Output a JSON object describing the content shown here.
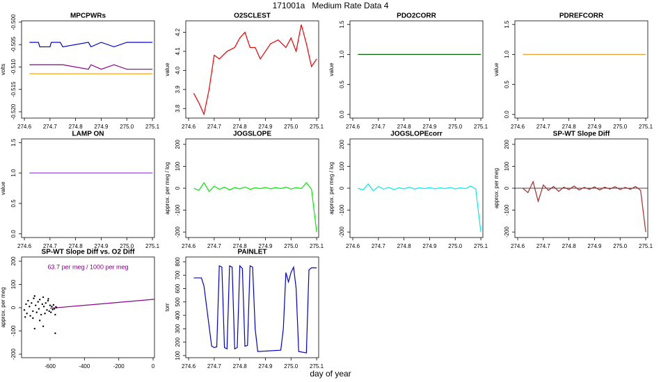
{
  "title": "171001a   Medium Rate Data 4",
  "xlabel": "day of year",
  "chart_data": [
    {
      "type": "line",
      "title": "MPCPWRs",
      "ylabel": "volts",
      "x": [
        274.62,
        274.655,
        274.66,
        274.7,
        274.705,
        274.74,
        274.75,
        274.85,
        274.86,
        274.9,
        274.95,
        275.0,
        275.1
      ],
      "series": [
        {
          "color": "#0000cd",
          "values": [
            -0.5045,
            -0.5045,
            -0.5055,
            -0.5055,
            -0.5045,
            -0.5045,
            -0.5055,
            -0.5045,
            -0.5055,
            -0.5045,
            -0.5055,
            -0.5045,
            -0.5045
          ]
        },
        {
          "color": "#8b008b",
          "values": [
            -0.5095,
            -0.5095,
            -0.5095,
            -0.5095,
            -0.5095,
            -0.5095,
            -0.5095,
            -0.5105,
            -0.5095,
            -0.5105,
            -0.5095,
            -0.5105,
            -0.5105
          ]
        },
        {
          "color": "#ffa500",
          "values": [
            -0.5115,
            -0.5115,
            -0.5115,
            -0.5115,
            -0.5115,
            -0.5115,
            -0.5115,
            -0.5115,
            -0.5115,
            -0.5115,
            -0.5115,
            -0.5115,
            -0.5115
          ]
        }
      ],
      "xlim": [
        274.589,
        275.108
      ],
      "ylim": [
        -0.5214,
        -0.4997
      ],
      "xticks": [
        274.6,
        274.7,
        274.8,
        274.9,
        {
          "value": 275,
          "label": "275.0"
        },
        275.1
      ],
      "yticks": [
        {
          "value": -0.5,
          "label": "-0.500"
        },
        {
          "value": -0.505,
          "label": "-0.505"
        },
        {
          "value": -0.51,
          "label": "-0.510"
        },
        {
          "value": -0.515,
          "label": "-0.515"
        },
        {
          "value": -0.52,
          "label": "-0.520"
        }
      ]
    },
    {
      "type": "line",
      "title": "O2SCLEST",
      "ylabel": "value",
      "x": [
        274.62,
        274.64,
        274.66,
        274.68,
        274.7,
        274.72,
        274.75,
        274.78,
        274.8,
        274.82,
        274.84,
        274.86,
        274.88,
        274.9,
        274.92,
        274.95,
        274.98,
        275.0,
        275.02,
        275.04,
        275.06,
        275.08,
        275.09,
        275.1
      ],
      "series": [
        {
          "color": "#ee0000",
          "values": [
            3.88,
            3.83,
            3.77,
            3.9,
            4.08,
            4.06,
            4.1,
            4.12,
            4.17,
            4.2,
            4.12,
            4.12,
            4.06,
            4.1,
            4.14,
            4.16,
            4.12,
            4.17,
            4.1,
            4.24,
            4.14,
            4.02,
            4.04,
            4.06
          ]
        }
      ],
      "xlim": [
        274.589,
        275.108
      ],
      "ylim": [
        3.75,
        4.26
      ],
      "xticks": [
        274.6,
        274.7,
        274.8,
        274.9,
        {
          "value": 275,
          "label": "275.0"
        },
        275.1
      ],
      "yticks": [
        3.8,
        3.9,
        {
          "value": 4,
          "label": "4.0"
        },
        4.1,
        4.2
      ]
    },
    {
      "type": "line",
      "title": "PDO2CORR",
      "ylabel": "value",
      "x": [
        274.62,
        275.1
      ],
      "series": [
        {
          "color": "#006400",
          "values": [
            1,
            1
          ]
        }
      ],
      "xlim": [
        274.589,
        275.108
      ],
      "ylim": [
        -0.06,
        1.56
      ],
      "xticks": [
        274.6,
        274.7,
        274.8,
        274.9,
        {
          "value": 275,
          "label": "275.0"
        },
        275.1
      ],
      "yticks": [
        {
          "value": 0,
          "label": "0.0"
        },
        0.5,
        {
          "value": 1,
          "label": "1.0"
        },
        1.5
      ]
    },
    {
      "type": "line",
      "title": "PDREFCORR",
      "ylabel": "value",
      "x": [
        274.62,
        275.1
      ],
      "series": [
        {
          "color": "#f0a030",
          "values": [
            1,
            1
          ]
        }
      ],
      "xlim": [
        274.589,
        275.108
      ],
      "ylim": [
        -0.06,
        1.56
      ],
      "xticks": [
        274.6,
        274.7,
        274.8,
        274.9,
        {
          "value": 275,
          "label": "275.0"
        },
        275.1
      ],
      "yticks": [
        {
          "value": 0,
          "label": "0.0"
        },
        0.5,
        {
          "value": 1,
          "label": "1.0"
        },
        1.5
      ]
    },
    {
      "type": "line",
      "title": "LAMP ON",
      "ylabel": "value",
      "x": [
        274.62,
        275.1
      ],
      "series": [
        {
          "color": "#a020f0",
          "values": [
            1,
            1
          ]
        }
      ],
      "xlim": [
        274.589,
        275.108
      ],
      "ylim": [
        -0.06,
        1.56
      ],
      "xticks": [
        274.6,
        274.7,
        274.8,
        274.9,
        {
          "value": 275,
          "label": "275.0"
        },
        275.1
      ],
      "yticks": [
        {
          "value": 0,
          "label": "0.0"
        },
        0.5,
        {
          "value": 1,
          "label": "1.0"
        },
        1.5
      ]
    },
    {
      "type": "line",
      "title": "JOGSLOPE",
      "ylabel": "approx. per meg / log",
      "x": [
        274.62,
        274.64,
        274.66,
        274.68,
        274.7,
        274.72,
        274.74,
        274.76,
        274.78,
        274.8,
        274.82,
        274.84,
        274.86,
        274.88,
        274.9,
        274.92,
        274.94,
        274.96,
        274.98,
        275.0,
        275.02,
        275.04,
        275.06,
        275.08,
        275.1
      ],
      "series": [
        {
          "color": "#00ee00",
          "values": [
            0,
            -10,
            25,
            -15,
            10,
            -5,
            5,
            -8,
            3,
            -3,
            6,
            -5,
            2,
            -2,
            4,
            -3,
            3,
            -2,
            5,
            -4,
            3,
            -2,
            25,
            -5,
            -200
          ]
        }
      ],
      "xlim": [
        274.589,
        275.108
      ],
      "ylim": [
        -225,
        225
      ],
      "xticks": [
        274.6,
        274.7,
        274.8,
        274.9,
        {
          "value": 275,
          "label": "275.0"
        },
        275.1
      ],
      "yticks": [
        -200,
        -100,
        0,
        100,
        200
      ]
    },
    {
      "type": "line",
      "title": "JOGSLOPEcorr",
      "ylabel": "approx. per meg / log",
      "x": [
        274.62,
        274.64,
        274.66,
        274.68,
        274.7,
        274.72,
        274.74,
        274.76,
        274.78,
        274.8,
        274.82,
        274.84,
        274.86,
        274.88,
        274.9,
        274.92,
        274.94,
        274.96,
        274.98,
        275.0,
        275.02,
        275.04,
        275.06,
        275.08,
        275.1
      ],
      "series": [
        {
          "color": "#00eeee",
          "values": [
            0,
            -8,
            20,
            -12,
            8,
            -4,
            4,
            -6,
            2,
            -3,
            5,
            -4,
            2,
            -2,
            3,
            -3,
            2,
            -2,
            4,
            -3,
            2,
            -2,
            10,
            -4,
            -200
          ]
        }
      ],
      "xlim": [
        274.589,
        275.108
      ],
      "ylim": [
        -225,
        225
      ],
      "xticks": [
        274.6,
        274.7,
        274.8,
        274.9,
        {
          "value": 275,
          "label": "275.0"
        },
        275.1
      ],
      "yticks": [
        -200,
        -100,
        0,
        100,
        200
      ]
    },
    {
      "type": "line",
      "title": "SP-WT Slope Diff",
      "ylabel": "approx. per meg",
      "hline": 0,
      "x": [
        274.62,
        274.64,
        274.66,
        274.68,
        274.7,
        274.72,
        274.74,
        274.76,
        274.78,
        274.8,
        274.82,
        274.84,
        274.86,
        274.88,
        274.9,
        274.92,
        274.94,
        274.96,
        274.98,
        275.0,
        275.02,
        275.04,
        275.06,
        275.08,
        275.1
      ],
      "series": [
        {
          "color": "#a52a2a",
          "values": [
            0,
            -20,
            30,
            -60,
            15,
            -10,
            8,
            -15,
            5,
            -6,
            10,
            -8,
            4,
            -5,
            6,
            -8,
            5,
            -4,
            7,
            -6,
            4,
            -5,
            8,
            -10,
            -200
          ]
        }
      ],
      "xlim": [
        274.589,
        275.108
      ],
      "ylim": [
        -225,
        225
      ],
      "xticks": [
        274.6,
        274.7,
        274.8,
        274.9,
        {
          "value": 275,
          "label": "275.0"
        },
        275.1
      ],
      "yticks": [
        -200,
        -100,
        0,
        100,
        200
      ]
    },
    {
      "type": "scatter",
      "title": "SP-WT Slope Diff vs. O2 Diff",
      "ylabel": "approx. per meg",
      "annotation": "63.7 per meg / 1000 per meg",
      "annotation_color": "#8b008b",
      "series": [
        {
          "kind": "points",
          "color": "#000000",
          "x": [
            -750,
            -740,
            -735,
            -728,
            -720,
            -715,
            -708,
            -700,
            -695,
            -690,
            -684,
            -678,
            -670,
            -665,
            -660,
            -652,
            -645,
            -640,
            -636,
            -630,
            -625,
            -618,
            -612,
            -605,
            -600,
            -595,
            -590,
            -585,
            -580,
            -575,
            -570,
            -566,
            -562,
            -700,
            -690,
            -640,
            -570,
            -745,
            -660,
            -610
          ],
          "values": [
            -10,
            15,
            -25,
            30,
            5,
            -35,
            20,
            -15,
            40,
            -90,
            10,
            -20,
            25,
            -5,
            35,
            -30,
            15,
            -80,
            5,
            -25,
            20,
            -10,
            30,
            -15,
            10,
            -20,
            5,
            -8,
            12,
            -5,
            -110,
            3,
            0,
            -45,
            50,
            45,
            -30,
            -40,
            -55,
            38
          ]
        },
        {
          "kind": "line",
          "color": "#8b008b",
          "x": [
            -600,
            8
          ],
          "values": [
            -2.5,
            36.2
          ]
        }
      ],
      "xlim": [
        -766,
        8
      ],
      "ylim": [
        -215,
        218
      ],
      "xticks": [
        -600,
        -400,
        -200,
        0
      ],
      "yticks": [
        -200,
        -100,
        0,
        100,
        200
      ]
    },
    {
      "type": "line",
      "title": "PAINLET",
      "ylabel": "torr",
      "x": [
        274.62,
        274.65,
        274.66,
        274.69,
        274.7,
        274.71,
        274.72,
        274.73,
        274.74,
        274.75,
        274.76,
        274.77,
        274.78,
        274.79,
        274.8,
        274.81,
        274.82,
        274.83,
        274.84,
        274.85,
        274.86,
        274.87,
        274.96,
        274.97,
        274.98,
        274.99,
        275.0,
        275.01,
        275.02,
        275.03,
        275.06,
        275.07,
        275.08,
        275.1
      ],
      "series": [
        {
          "color": "#0000cd",
          "values": [
            680,
            680,
            620,
            170,
            160,
            165,
            770,
            760,
            160,
            150,
            770,
            760,
            150,
            160,
            770,
            750,
            170,
            175,
            770,
            760,
            300,
            130,
            140,
            300,
            720,
            650,
            720,
            760,
            600,
            130,
            120,
            740,
            755,
            755
          ]
        }
      ],
      "xlim": [
        274.589,
        275.108
      ],
      "ylim": [
        84,
        836
      ],
      "xticks": [
        274.6,
        274.7,
        274.8,
        274.9,
        {
          "value": 275,
          "label": "275.0"
        },
        275.1
      ],
      "yticks": [
        100,
        200,
        300,
        400,
        500,
        600,
        700,
        800
      ]
    }
  ]
}
